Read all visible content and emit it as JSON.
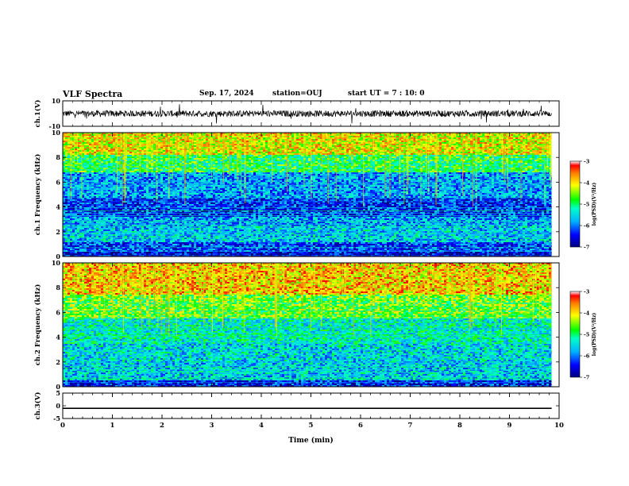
{
  "header": {
    "title": "VLF Spectra",
    "date": "Sep. 17, 2024",
    "station": "station=OUJ",
    "start_ut": "start UT =  7 : 10: 0"
  },
  "chart_data": [
    {
      "type": "line",
      "name": "ch1-waveform",
      "ylabel": "ch.1(V)",
      "ylim": [
        -10,
        10
      ],
      "yticks": [
        10,
        -10
      ],
      "baseline": 0,
      "amplitude": 2.5,
      "color": "#000000"
    },
    {
      "type": "heatmap",
      "name": "ch1-spectrogram",
      "ylabel": "ch.1 Frequency (kHz)",
      "ylim": [
        0,
        10
      ],
      "yticks": [
        0,
        2,
        4,
        6,
        8,
        10
      ],
      "colorbar": {
        "label": "log(PSD)(V²/Hz)",
        "ticks": [
          -3,
          -4,
          -5,
          -6,
          -7
        ],
        "range": [
          -7,
          -3
        ]
      },
      "bands": [
        {
          "f0": 0,
          "f1": 0.4,
          "level": -6.6
        },
        {
          "f0": 0.4,
          "f1": 1.2,
          "level": -6.2
        },
        {
          "f0": 1.2,
          "f1": 2.4,
          "level": -5.6
        },
        {
          "f0": 2.4,
          "f1": 3.2,
          "level": -5.8
        },
        {
          "f0": 3.2,
          "f1": 4.8,
          "level": -6.3
        },
        {
          "f0": 4.8,
          "f1": 6.8,
          "level": -5.8
        },
        {
          "f0": 6.8,
          "f1": 8.2,
          "level": -4.9
        },
        {
          "f0": 8.2,
          "f1": 10,
          "level": -4.1
        }
      ]
    },
    {
      "type": "heatmap",
      "name": "ch2-spectrogram",
      "ylabel": "ch.2 Frequency (kHz)",
      "ylim": [
        0,
        10
      ],
      "yticks": [
        0,
        2,
        4,
        6,
        8,
        10
      ],
      "colorbar": {
        "label": "log(PSD)(V²/Hz)",
        "ticks": [
          -3,
          -4,
          -5,
          -6,
          -7
        ],
        "range": [
          -7,
          -3
        ]
      },
      "bands": [
        {
          "f0": 0,
          "f1": 0.5,
          "level": -6.4
        },
        {
          "f0": 0.5,
          "f1": 2.0,
          "level": -5.6
        },
        {
          "f0": 2.0,
          "f1": 3.5,
          "level": -5.5
        },
        {
          "f0": 3.5,
          "f1": 5.5,
          "level": -5.3
        },
        {
          "f0": 5.5,
          "f1": 7.5,
          "level": -4.6
        },
        {
          "f0": 7.5,
          "f1": 10,
          "level": -3.9
        }
      ]
    },
    {
      "type": "line",
      "name": "ch3-waveform",
      "ylabel": "ch.3(V)",
      "ylim": [
        -5,
        5
      ],
      "yticks": [
        5,
        0,
        -5
      ],
      "baseline": -1,
      "color": "#000000"
    }
  ],
  "time_axis": {
    "xlabel": "Time (min)",
    "xlim": [
      0,
      10
    ],
    "xticks": [
      0,
      1,
      2,
      3,
      4,
      5,
      6,
      7,
      8,
      9,
      10
    ],
    "data_end": 9.85
  }
}
